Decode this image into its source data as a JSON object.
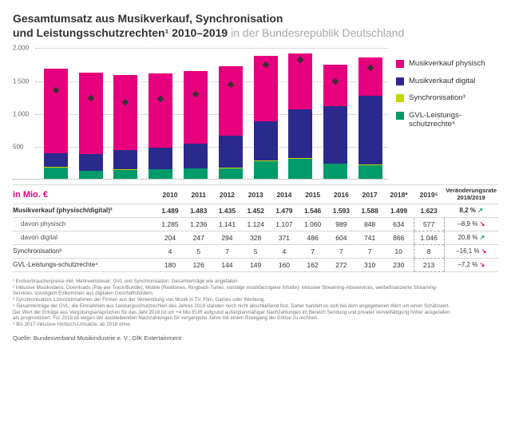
{
  "title_line1": "Gesamtumsatz aus Musikverkauf, Synchronisation",
  "title_line2": "und Leistungsschutzrechten¹ 2010–2019",
  "title_suffix": " in der Bundesrepublik Deutschland",
  "chart": {
    "type": "stacked_bar",
    "y_max": 2000,
    "y_ticks": [
      500,
      1000,
      1500,
      2000
    ],
    "y_labels": [
      "500",
      "1.000",
      "1.500",
      "2.000"
    ],
    "grid_color": "#bbbbbb",
    "series": [
      {
        "key": "gvl",
        "label": "GVL-Leistungs-\nschutzrechte⁴",
        "color": "#009a6b"
      },
      {
        "key": "sync",
        "label": "Synchronisation³",
        "color": "#c8d400"
      },
      {
        "key": "digital",
        "label": "Musikverkauf digital",
        "color": "#2a2a8c"
      },
      {
        "key": "physical",
        "label": "Musikverkauf physisch",
        "color": "#e6007e"
      }
    ],
    "years": [
      "2010",
      "2011",
      "2012",
      "2013",
      "2014",
      "2015",
      "2016",
      "2017",
      "2018*",
      "2019⁵"
    ],
    "data": {
      "physical": [
        1285,
        1236,
        1141,
        1124,
        1107,
        1060,
        989,
        848,
        634,
        577
      ],
      "digital": [
        204,
        247,
        294,
        328,
        371,
        486,
        604,
        741,
        866,
        1046
      ],
      "sync": [
        4,
        5,
        7,
        5,
        4,
        7,
        7,
        7,
        10,
        8
      ],
      "gvl": [
        180,
        126,
        144,
        149,
        160,
        162,
        272,
        310,
        230,
        213
      ]
    },
    "dots": [
      1673,
      1614,
      1586,
      1606,
      1642,
      1715,
      1872,
      1906,
      1740,
      1844
    ]
  },
  "table": {
    "unit_label": "in Mio. €",
    "rate_header": "Veränderungsrate 2018/2019",
    "rows": [
      {
        "label": "Musikverkauf (physisch/digital)²",
        "vals": [
          "1.489",
          "1.483",
          "1.435",
          "1.452",
          "1.479",
          "1.546",
          "1.593",
          "1.588",
          "1.499",
          "1.623"
        ],
        "rate": "8,2 %",
        "dir": "up",
        "bold": true,
        "box": false
      },
      {
        "label": "davon physisch",
        "vals": [
          "1.285",
          "1.236",
          "1.141",
          "1.124",
          "1.107",
          "1.060",
          "989",
          "848",
          "634",
          "577"
        ],
        "rate": "–8,9 %",
        "dir": "dn",
        "indent": true,
        "box": true
      },
      {
        "label": "davon digital",
        "vals": [
          "204",
          "247",
          "294",
          "328",
          "371",
          "486",
          "604",
          "741",
          "866",
          "1.046"
        ],
        "rate": "20,8 %",
        "dir": "up",
        "indent": true,
        "box": true
      },
      {
        "label": "Synchronisation³",
        "vals": [
          "4",
          "5",
          "7",
          "5",
          "4",
          "7",
          "7",
          "7",
          "10",
          "8"
        ],
        "rate": "–16,1 %",
        "dir": "dn",
        "box": true
      },
      {
        "label": "GVL-Leistungs-schutzrechte⁴",
        "vals": [
          "180",
          "126",
          "144",
          "149",
          "160",
          "162",
          "272",
          "310",
          "230",
          "213"
        ],
        "rate": "–7,2 %",
        "dir": "dn",
        "box": true
      }
    ]
  },
  "footnotes": [
    "¹ Endverbraucherpreise inkl. Mehrwertsteuer; GVL und Synchronisation: Gesamterträge wie angefallen.",
    "² Inklusive Musikvideos, Downloads (Pay per Track/Bundle), Mobile (Realtones, Ringback-Tunes, sonstige musikbezogene Inhalte); inklusive Streaming-Aboservices, werbefinanzierte Streaming-Services, sonstigem Einkommen aus digitalen Geschäftsfeldern.",
    "³ Synchronisation: Lizenzeinnahmen der Firmen aus der Verwendung von Musik in TV, Film, Games oder Werbung.",
    "⁴ Gesamterträge der GVL: die Einnahmen aus Leistungsschutzrechten des Jahres 2019 standen noch nicht abschließend fest. Daher handelt es sich bei dem angegebenen Wert um einen Schätzwert. Der Wert der Erträge aus Vergütungsansprüchen für das Jahr 2018 ist um +4 Mio EUR aufgrund außerplanmäßiger Nachzahlungen im Bereich Sendung und privater Vervielfältigung höher ausgefallen als prognostiziert. Für 2019 ist wegen der ausbleibenden Nachzahlungen für vergangene Jahre mit einem Rückgang der Erlöse zu rechnen.",
    "⁵ Bis 2017 inklusive Hörbuch-Umsätze, ab 2018 ohne."
  ],
  "source": "Quelle: Bundesverband Musikindustrie e. V.; GfK Entertainment"
}
